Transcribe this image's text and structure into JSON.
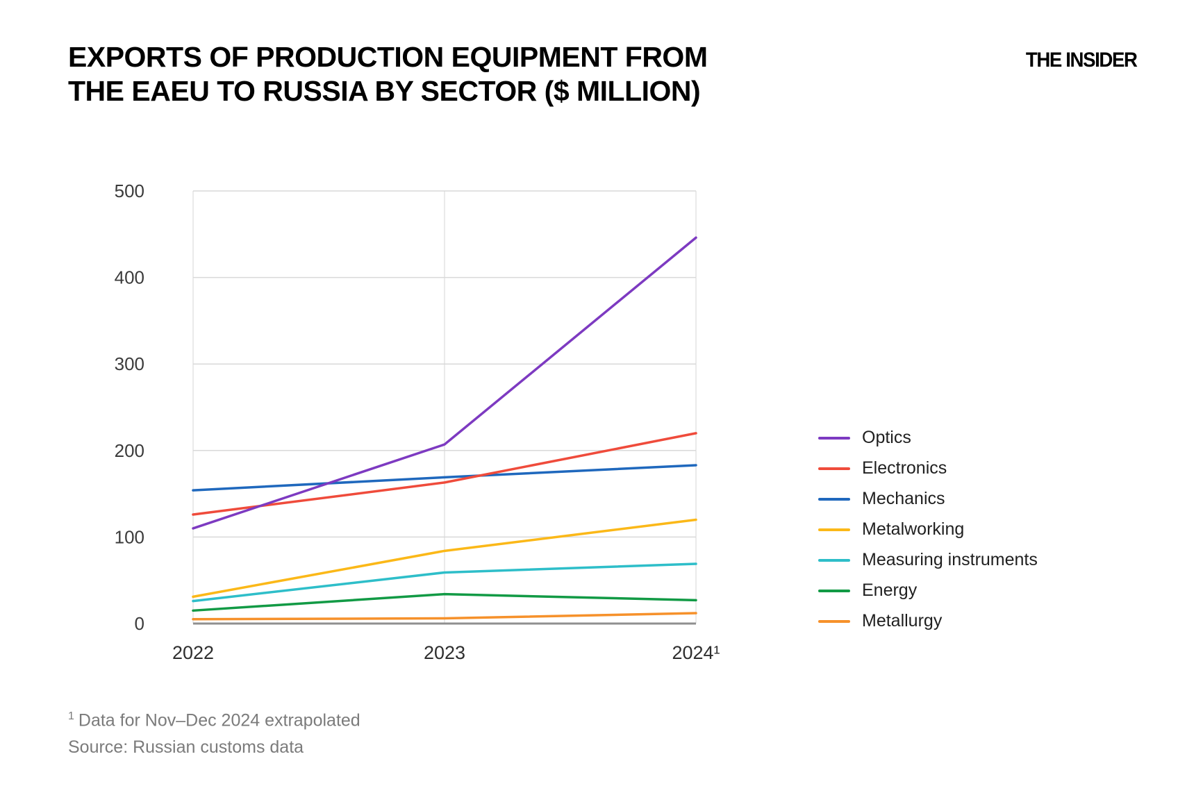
{
  "header": {
    "title_line1": "EXPORTS OF PRODUCTION EQUIPMENT FROM",
    "title_line2": "THE EAEU TO RUSSIA BY SECTOR ($ MILLION)",
    "brand": "THE INSIDER"
  },
  "chart_data": {
    "type": "line",
    "title": "Exports of production equipment from the EAEU to Russia by sector ($ million)",
    "categories": [
      "2022",
      "2023",
      "2024¹"
    ],
    "series": [
      {
        "name": "Optics",
        "color": "#7D3AC1",
        "values": [
          110,
          207,
          446
        ]
      },
      {
        "name": "Electronics",
        "color": "#EF4B3B",
        "values": [
          126,
          163,
          220
        ]
      },
      {
        "name": "Mechanics",
        "color": "#1F68BD",
        "values": [
          154,
          169,
          183
        ]
      },
      {
        "name": "Metalworking",
        "color": "#FBB818",
        "values": [
          31,
          84,
          120
        ]
      },
      {
        "name": "Measuring instruments",
        "color": "#2EBEC9",
        "values": [
          26,
          59,
          69
        ]
      },
      {
        "name": "Energy",
        "color": "#129A45",
        "values": [
          15,
          34,
          27
        ]
      },
      {
        "name": "Metallurgy",
        "color": "#F6912B",
        "values": [
          5,
          6,
          12
        ]
      }
    ],
    "xlabel": "",
    "ylabel": "",
    "ylim": [
      0,
      500
    ],
    "ytick_step": 100,
    "yticks": [
      0,
      100,
      200,
      300,
      400,
      500
    ],
    "grid": true,
    "legend_position": "right"
  },
  "footnotes": {
    "note_sup": "1",
    "note_text": "Data for Nov–Dec 2024 extrapolated",
    "source": "Source: Russian customs data"
  }
}
